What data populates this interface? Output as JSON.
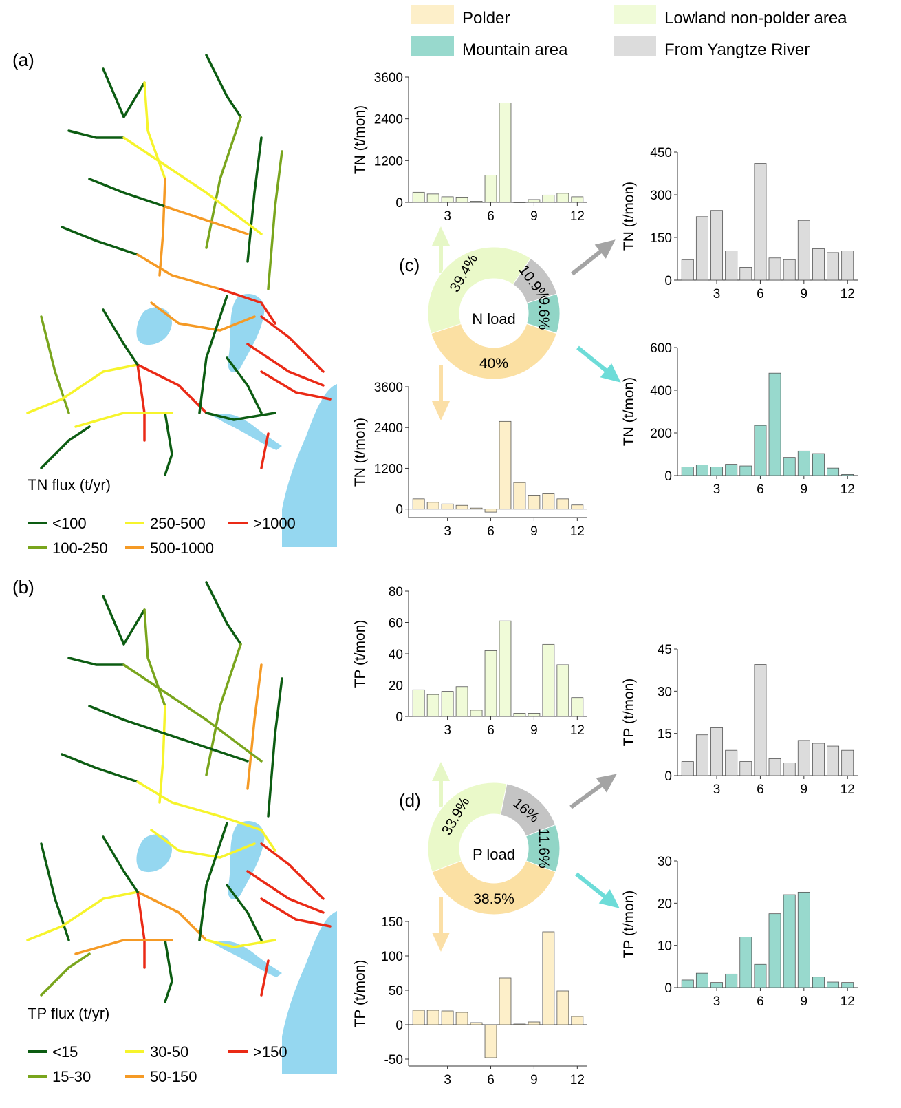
{
  "colors": {
    "polder": "#fdefc9",
    "lowland": "#f0fbd8",
    "mountain": "#98d9cd",
    "yangtze": "#dcdcdc",
    "donut_polder": "#fbe0a3",
    "donut_lowland": "#eaf9c9",
    "donut_mountain": "#91d5c6",
    "donut_yangtze": "#c4c4c4",
    "water": "#95d7f0",
    "flux1": "#0c5c12",
    "flux2": "#79a51d",
    "flux3": "#f6f42c",
    "flux4": "#f59a25",
    "flux5": "#ea2a16",
    "arrow_lowland": "#e6f7c6",
    "arrow_polder": "#fbdfa6",
    "arrow_gray": "#a4a4a4",
    "arrow_teal": "#6ddcd8"
  },
  "legend_top": [
    "Polder",
    "Lowland non-polder area",
    "Mountain area",
    "From Yangtze River"
  ],
  "panel_labels": {
    "a": "(a)",
    "b": "(b)",
    "c": "(c)",
    "d": "(d)"
  },
  "map_a": {
    "legend_title": "TN flux (t/yr)",
    "legend_items": [
      "<100",
      "100-250",
      "250-500",
      "500-1000",
      ">1000"
    ]
  },
  "map_b": {
    "legend_title": "TP flux (t/yr)",
    "legend_items": [
      "<15",
      "15-30",
      "30-50",
      "50-150",
      ">150"
    ]
  },
  "donuts": [
    {
      "center_label": "N load",
      "slices": [
        {
          "group": "Lowland non-polder area",
          "pct": 39.4,
          "label": "39.4%"
        },
        {
          "group": "From Yangtze River",
          "pct": 10.9,
          "label": "10.9%"
        },
        {
          "group": "Mountain area",
          "pct": 9.6,
          "label": "9.6%"
        },
        {
          "group": "Polder",
          "pct": 40,
          "label": "40%"
        }
      ]
    },
    {
      "center_label": "P load",
      "slices": [
        {
          "group": "Lowland non-polder area",
          "pct": 33.9,
          "label": "33.9%"
        },
        {
          "group": "From Yangtze River",
          "pct": 16,
          "label": "16%"
        },
        {
          "group": "Mountain area",
          "pct": 11.6,
          "label": "11.6%"
        },
        {
          "group": "Polder",
          "pct": 38.5,
          "label": "38.5%"
        }
      ]
    }
  ],
  "chart_data": [
    {
      "id": "tn_lowland",
      "type": "bar",
      "series_group": "Lowland non-polder area",
      "ylabel": "TN (t/mon)",
      "ylim": [
        0,
        3600
      ],
      "yticks": [
        0,
        1200,
        2400,
        3600
      ],
      "xticks": [
        3,
        6,
        9,
        12
      ],
      "x": [
        1,
        2,
        3,
        4,
        5,
        6,
        7,
        8,
        9,
        10,
        11,
        12
      ],
      "values": [
        290,
        240,
        160,
        150,
        30,
        780,
        2860,
        0,
        80,
        210,
        260,
        160
      ]
    },
    {
      "id": "tn_polder",
      "type": "bar",
      "series_group": "Polder",
      "ylabel": "TN (t/mon)",
      "ylim": [
        -250,
        3600
      ],
      "yticks": [
        0,
        1200,
        2400,
        3600
      ],
      "xticks": [
        3,
        6,
        9,
        12
      ],
      "x": [
        1,
        2,
        3,
        4,
        5,
        6,
        7,
        8,
        9,
        10,
        11,
        12
      ],
      "values": [
        300,
        200,
        150,
        110,
        30,
        -90,
        2580,
        780,
        410,
        450,
        300,
        120
      ]
    },
    {
      "id": "tn_yangtze",
      "type": "bar",
      "series_group": "From Yangtze River",
      "ylabel": "TN (t/mon)",
      "ylim": [
        0,
        450
      ],
      "yticks": [
        0,
        150,
        300,
        450
      ],
      "xticks": [
        3,
        6,
        9,
        12
      ],
      "x": [
        1,
        2,
        3,
        4,
        5,
        6,
        7,
        8,
        9,
        10,
        11,
        12
      ],
      "values": [
        72,
        223,
        245,
        103,
        45,
        410,
        78,
        72,
        210,
        110,
        97,
        103
      ]
    },
    {
      "id": "tn_mountain",
      "type": "bar",
      "series_group": "Mountain area",
      "ylabel": "TN (t/mon)",
      "ylim": [
        0,
        600
      ],
      "yticks": [
        0,
        200,
        400,
        600
      ],
      "xticks": [
        3,
        6,
        9,
        12
      ],
      "x": [
        1,
        2,
        3,
        4,
        5,
        6,
        7,
        8,
        9,
        10,
        11,
        12
      ],
      "values": [
        40,
        50,
        40,
        53,
        45,
        235,
        480,
        85,
        115,
        103,
        35,
        5
      ]
    },
    {
      "id": "tp_lowland",
      "type": "bar",
      "series_group": "Lowland non-polder area",
      "ylabel": "TP (t/mon)",
      "ylim": [
        0,
        80
      ],
      "yticks": [
        0,
        20,
        40,
        60,
        80
      ],
      "xticks": [
        3,
        6,
        9,
        12
      ],
      "x": [
        1,
        2,
        3,
        4,
        5,
        6,
        7,
        8,
        9,
        10,
        11,
        12
      ],
      "values": [
        17,
        14,
        16,
        19,
        4,
        42,
        61,
        2,
        2,
        46,
        33,
        12
      ]
    },
    {
      "id": "tp_polder",
      "type": "bar",
      "series_group": "Polder",
      "ylabel": "TP (t/mon)",
      "ylim": [
        -60,
        150
      ],
      "yticks": [
        -50,
        0,
        50,
        100,
        150
      ],
      "xticks": [
        3,
        6,
        9,
        12
      ],
      "x": [
        1,
        2,
        3,
        4,
        5,
        6,
        7,
        8,
        9,
        10,
        11,
        12
      ],
      "values": [
        21,
        21,
        20,
        18,
        3,
        -48,
        68,
        1,
        4,
        135,
        49,
        12
      ]
    },
    {
      "id": "tp_yangtze",
      "type": "bar",
      "series_group": "From Yangtze River",
      "ylabel": "TP (t/mon)",
      "ylim": [
        0,
        45
      ],
      "yticks": [
        0,
        15,
        30,
        45
      ],
      "xticks": [
        3,
        6,
        9,
        12
      ],
      "x": [
        1,
        2,
        3,
        4,
        5,
        6,
        7,
        8,
        9,
        10,
        11,
        12
      ],
      "values": [
        5,
        14.5,
        17,
        9,
        5,
        39.5,
        6,
        4.5,
        12.5,
        11.5,
        10.5,
        9
      ]
    },
    {
      "id": "tp_mountain",
      "type": "bar",
      "series_group": "Mountain area",
      "ylabel": "TP (t/mon)",
      "ylim": [
        0,
        30
      ],
      "yticks": [
        0,
        10,
        20,
        30
      ],
      "xticks": [
        3,
        6,
        9,
        12
      ],
      "x": [
        1,
        2,
        3,
        4,
        5,
        6,
        7,
        8,
        9,
        10,
        11,
        12
      ],
      "values": [
        1.8,
        3.4,
        1.2,
        3.2,
        12,
        5.5,
        17.5,
        22,
        22.6,
        2.5,
        1.3,
        1.2
      ]
    }
  ]
}
